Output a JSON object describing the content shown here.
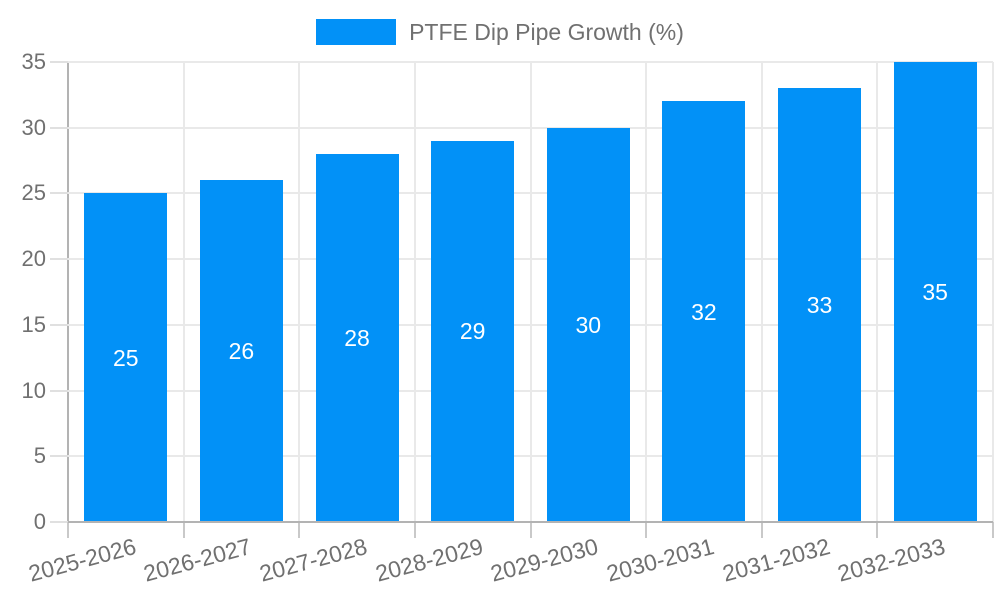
{
  "chart_data": {
    "type": "bar",
    "title": "PTFE Dip Pipe Growth (%)",
    "categories": [
      "2025-2026",
      "2026-2027",
      "2027-2028",
      "2028-2029",
      "2029-2030",
      "2030-2031",
      "2031-2032",
      "2032-2033"
    ],
    "values": [
      25,
      26,
      28,
      29,
      30,
      32,
      33,
      35
    ],
    "xlabel": "",
    "ylabel": "",
    "ylim": [
      0,
      35
    ],
    "yticks": [
      0,
      5,
      10,
      15,
      20,
      25,
      30,
      35
    ],
    "grid": true,
    "legend_position": "top",
    "bar_color": "#0291f7",
    "value_label_color": "#ffffff",
    "axis_text_color": "#707070",
    "grid_color": "#e9e9e9",
    "axis_line_color": "#b3b3b3",
    "background_color": "#ffffff"
  }
}
